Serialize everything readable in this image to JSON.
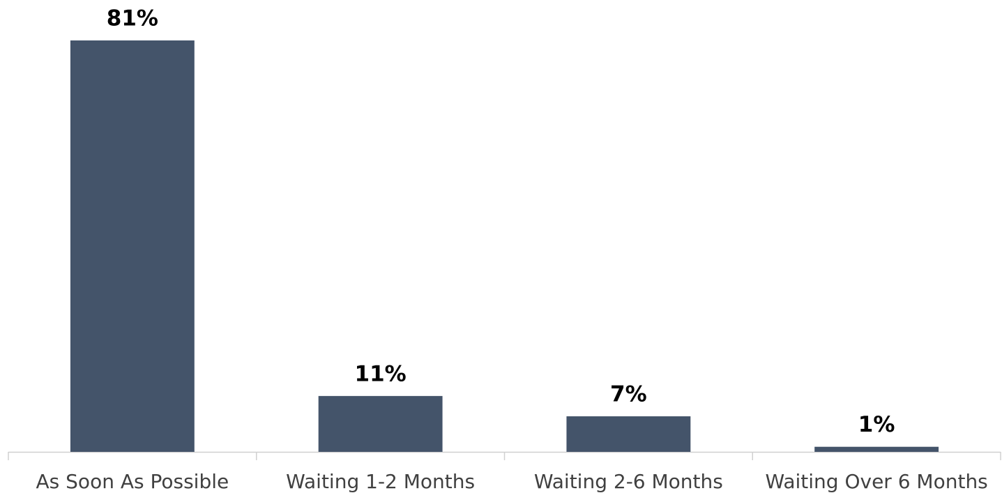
{
  "chart_data": {
    "type": "bar",
    "categories": [
      "As Soon As Possible",
      "Waiting 1-2 Months",
      "Waiting 2-6 Months",
      "Waiting Over 6 Months"
    ],
    "values": [
      81,
      11,
      7,
      1
    ],
    "value_labels": [
      "81%",
      "11%",
      "7%",
      "1%"
    ],
    "color": "#44546a"
  }
}
